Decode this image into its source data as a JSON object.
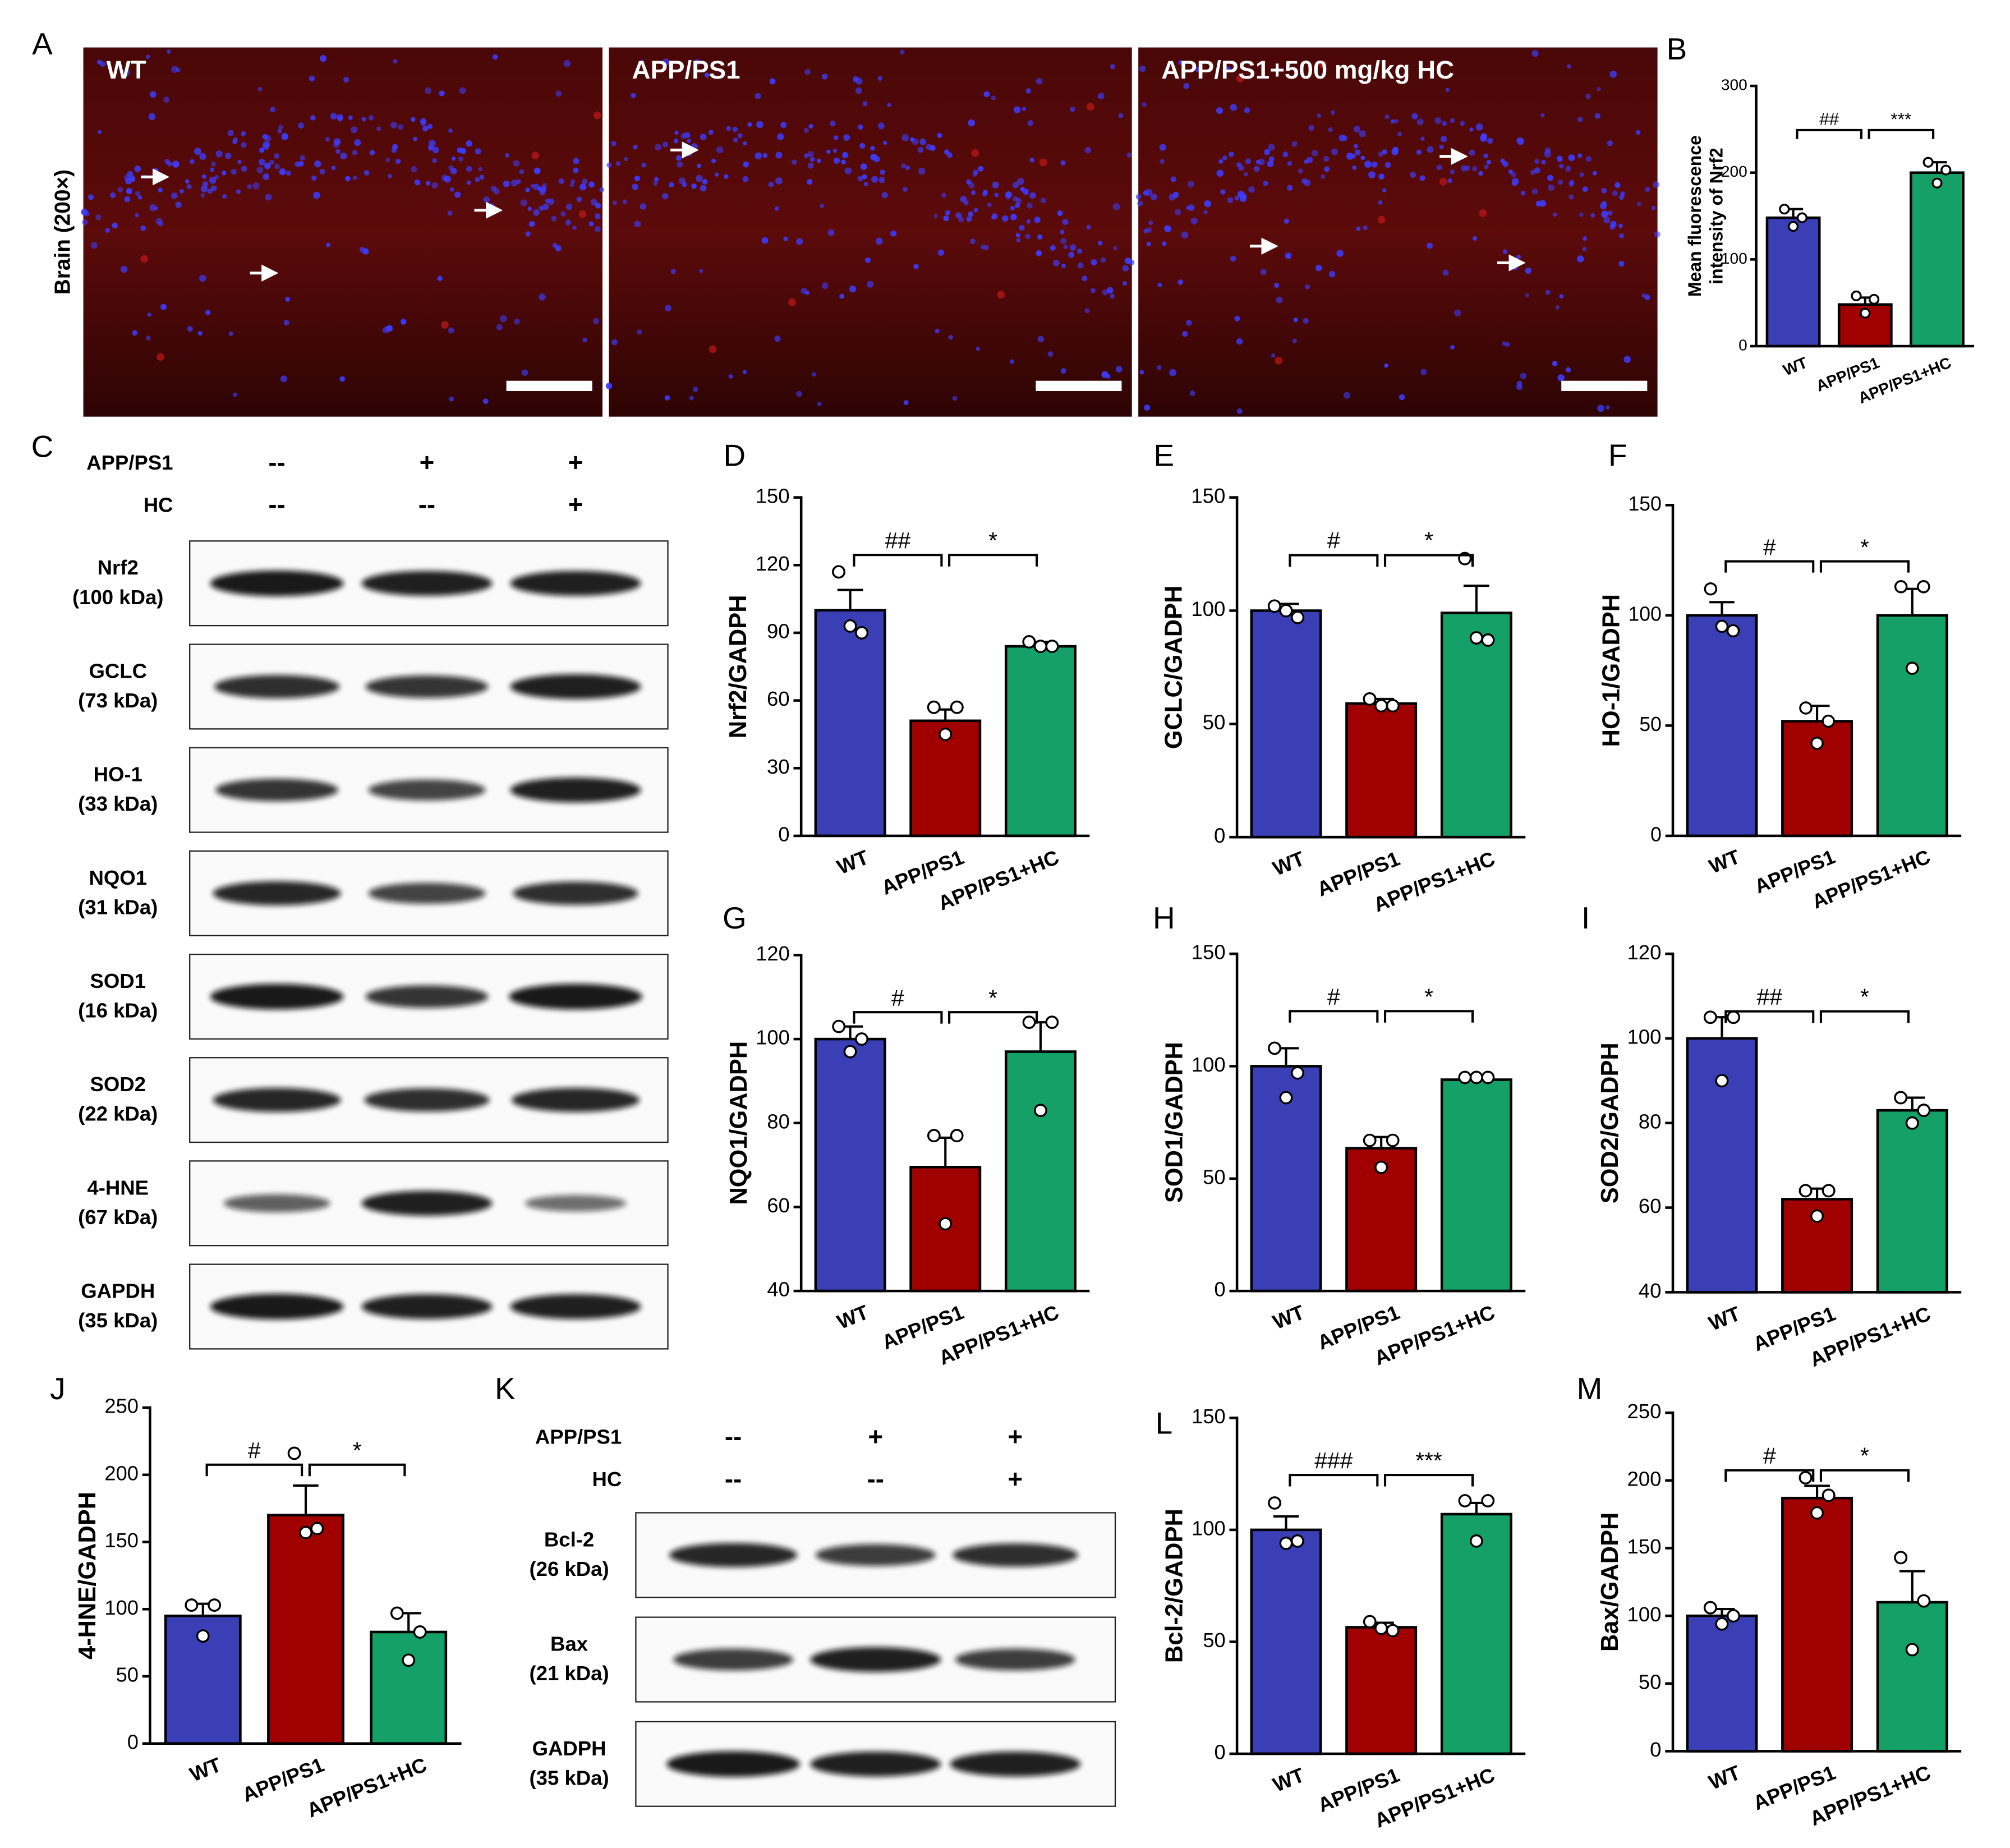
{
  "micrograph": {
    "label": "A",
    "y_label": "Brain (200×)",
    "panels": [
      "WT",
      "APP/PS1",
      "APP/PS1+500 mg/kg HC"
    ]
  },
  "blots": [
    {
      "label": "C",
      "conditions": [
        {
          "name": "APP/PS1",
          "marks": [
            "--",
            "+",
            "+"
          ]
        },
        {
          "name": "HC",
          "marks": [
            "--",
            "--",
            "+"
          ]
        }
      ],
      "bands": [
        {
          "name": "Nrf2",
          "size": "(100 kDa)"
        },
        {
          "name": "GCLC",
          "size": "(73 kDa)"
        },
        {
          "name": "HO-1",
          "size": "(33 kDa)"
        },
        {
          "name": "NQO1",
          "size": "(31 kDa)"
        },
        {
          "name": "SOD1",
          "size": "(16 kDa)"
        },
        {
          "name": "SOD2",
          "size": "(22 kDa)"
        },
        {
          "name": "4-HNE",
          "size": "(67 kDa)"
        },
        {
          "name": "GAPDH",
          "size": "(35 kDa)"
        }
      ]
    },
    {
      "label": "K",
      "conditions": [
        {
          "name": "APP/PS1",
          "marks": [
            "--",
            "+",
            "+"
          ]
        },
        {
          "name": "HC",
          "marks": [
            "--",
            "--",
            "+"
          ]
        }
      ],
      "bands": [
        {
          "name": "Bcl-2",
          "size": "(26 kDa)"
        },
        {
          "name": "Bax",
          "size": "(21 kDa)"
        },
        {
          "name": "GADPH",
          "size": "(35 kDa)"
        }
      ]
    }
  ],
  "chart_data": [
    {
      "type": "bar",
      "label": "B",
      "y_label": [
        "Mean fluorescence",
        "intensity of Nrf2"
      ],
      "categories": [
        "WT",
        "APP/PS1",
        "APP/PS1+HC"
      ],
      "values": [
        148,
        48,
        200
      ],
      "errors": [
        10,
        8,
        12
      ],
      "points": [
        [
          158,
          148,
          138
        ],
        [
          58,
          54,
          38
        ],
        [
          212,
          203,
          188
        ]
      ],
      "colors": [
        "#3b3fb6",
        "#a00000",
        "#15a067"
      ],
      "ylim": [
        0,
        300
      ],
      "yticks": [
        0,
        100,
        200,
        300
      ],
      "significance": [
        "##",
        "***"
      ]
    },
    {
      "type": "bar",
      "label": "D",
      "y_label": "Nrf2/GADPH",
      "categories": [
        "WT",
        "APP/PS1",
        "APP/PS1+HC"
      ],
      "values": [
        100,
        51,
        84
      ],
      "errors": [
        9,
        5,
        2
      ],
      "points": [
        [
          117,
          90,
          93
        ],
        [
          57,
          57,
          45
        ],
        [
          86,
          84,
          84
        ]
      ],
      "colors": [
        "#3b3fb6",
        "#a00000",
        "#15a067"
      ],
      "ylim": [
        0,
        150
      ],
      "yticks": [
        0,
        30,
        60,
        90,
        120,
        150
      ],
      "significance": [
        "##",
        "*"
      ]
    },
    {
      "type": "bar",
      "label": "E",
      "y_label": "GCLC/GADPH",
      "categories": [
        "WT",
        "APP/PS1",
        "APP/PS1+HC"
      ],
      "values": [
        100,
        59,
        99
      ],
      "errors": [
        3,
        2,
        12
      ],
      "points": [
        [
          102,
          97,
          100
        ],
        [
          61,
          58,
          58
        ],
        [
          123,
          87,
          88
        ]
      ],
      "colors": [
        "#3b3fb6",
        "#a00000",
        "#15a067"
      ],
      "ylim": [
        0,
        150
      ],
      "yticks": [
        0,
        50,
        100,
        150
      ],
      "significance": [
        "#",
        "*"
      ]
    },
    {
      "type": "bar",
      "label": "F",
      "y_label": "HO-1/GADPH",
      "categories": [
        "WT",
        "APP/PS1",
        "APP/PS1+HC"
      ],
      "values": [
        100,
        52,
        100
      ],
      "errors": [
        6,
        7,
        12
      ],
      "points": [
        [
          112,
          93,
          95
        ],
        [
          58,
          52,
          42
        ],
        [
          113,
          113,
          76
        ]
      ],
      "colors": [
        "#3b3fb6",
        "#a00000",
        "#15a067"
      ],
      "ylim": [
        0,
        150
      ],
      "yticks": [
        0,
        50,
        100,
        150
      ],
      "significance": [
        "#",
        "*"
      ]
    },
    {
      "type": "bar",
      "label": "G",
      "y_label": "NQO1/GADPH",
      "categories": [
        "WT",
        "APP/PS1",
        "APP/PS1+HC"
      ],
      "values": [
        100,
        69.5,
        97
      ],
      "errors": [
        3,
        7,
        7
      ],
      "points": [
        [
          103,
          100,
          97
        ],
        [
          77,
          77,
          56
        ],
        [
          104,
          104,
          83
        ]
      ],
      "colors": [
        "#3b3fb6",
        "#a00000",
        "#15a067"
      ],
      "ylim": [
        40,
        120
      ],
      "yticks": [
        40,
        60,
        80,
        100,
        120
      ],
      "significance": [
        "#",
        "*"
      ]
    },
    {
      "type": "bar",
      "label": "H",
      "y_label": "SOD1/GADPH",
      "categories": [
        "WT",
        "APP/PS1",
        "APP/PS1+HC"
      ],
      "values": [
        100,
        63.5,
        94
      ],
      "errors": [
        8,
        5,
        1
      ],
      "points": [
        [
          108,
          97,
          86
        ],
        [
          67,
          67,
          55
        ],
        [
          95,
          95,
          95
        ]
      ],
      "colors": [
        "#3b3fb6",
        "#a00000",
        "#15a067"
      ],
      "ylim": [
        0,
        150
      ],
      "yticks": [
        0,
        50,
        100,
        150
      ],
      "significance": [
        "#",
        "*"
      ]
    },
    {
      "type": "bar",
      "label": "I",
      "y_label": "SOD2/GADPH",
      "categories": [
        "WT",
        "APP/PS1",
        "APP/PS1+HC"
      ],
      "values": [
        100,
        62,
        83
      ],
      "errors": [
        5,
        2.5,
        3
      ],
      "points": [
        [
          105,
          105,
          90
        ],
        [
          64,
          64,
          58
        ],
        [
          86,
          83,
          80
        ]
      ],
      "colors": [
        "#3b3fb6",
        "#a00000",
        "#15a067"
      ],
      "ylim": [
        40,
        120
      ],
      "yticks": [
        40,
        60,
        80,
        100,
        120
      ],
      "significance": [
        "##",
        "*"
      ]
    },
    {
      "type": "bar",
      "label": "J",
      "y_label": "4-HNE/GADPH",
      "categories": [
        "WT",
        "APP/PS1",
        "APP/PS1+HC"
      ],
      "values": [
        95,
        170,
        83
      ],
      "errors": [
        9,
        22,
        14
      ],
      "points": [
        [
          103,
          103,
          80
        ],
        [
          216,
          160,
          157
        ],
        [
          97,
          83,
          62
        ]
      ],
      "colors": [
        "#3b3fb6",
        "#a00000",
        "#15a067"
      ],
      "ylim": [
        0,
        250
      ],
      "yticks": [
        0,
        50,
        100,
        150,
        200,
        250
      ],
      "significance": [
        "#",
        "*"
      ]
    },
    {
      "type": "bar",
      "label": "L",
      "y_label": "Bcl-2/GADPH",
      "categories": [
        "WT",
        "APP/PS1",
        "APP/PS1+HC"
      ],
      "values": [
        100,
        56.5,
        107
      ],
      "errors": [
        6,
        2,
        5
      ],
      "points": [
        [
          112,
          95,
          94
        ],
        [
          59,
          55,
          56
        ],
        [
          113,
          113,
          95
        ]
      ],
      "colors": [
        "#3b3fb6",
        "#a00000",
        "#15a067"
      ],
      "ylim": [
        0,
        150
      ],
      "yticks": [
        0,
        50,
        100,
        150
      ],
      "significance": [
        "###",
        "***"
      ]
    },
    {
      "type": "bar",
      "label": "M",
      "y_label": "Bax/GADPH",
      "categories": [
        "WT",
        "APP/PS1",
        "APP/PS1+HC"
      ],
      "values": [
        100,
        187,
        110
      ],
      "errors": [
        5,
        9,
        23
      ],
      "points": [
        [
          106,
          100,
          94
        ],
        [
          202,
          189,
          176
        ],
        [
          143,
          111,
          75
        ]
      ],
      "colors": [
        "#3b3fb6",
        "#a00000",
        "#15a067"
      ],
      "ylim": [
        0,
        250
      ],
      "yticks": [
        0,
        50,
        100,
        150,
        200,
        250
      ],
      "significance": [
        "#",
        "*"
      ]
    }
  ]
}
